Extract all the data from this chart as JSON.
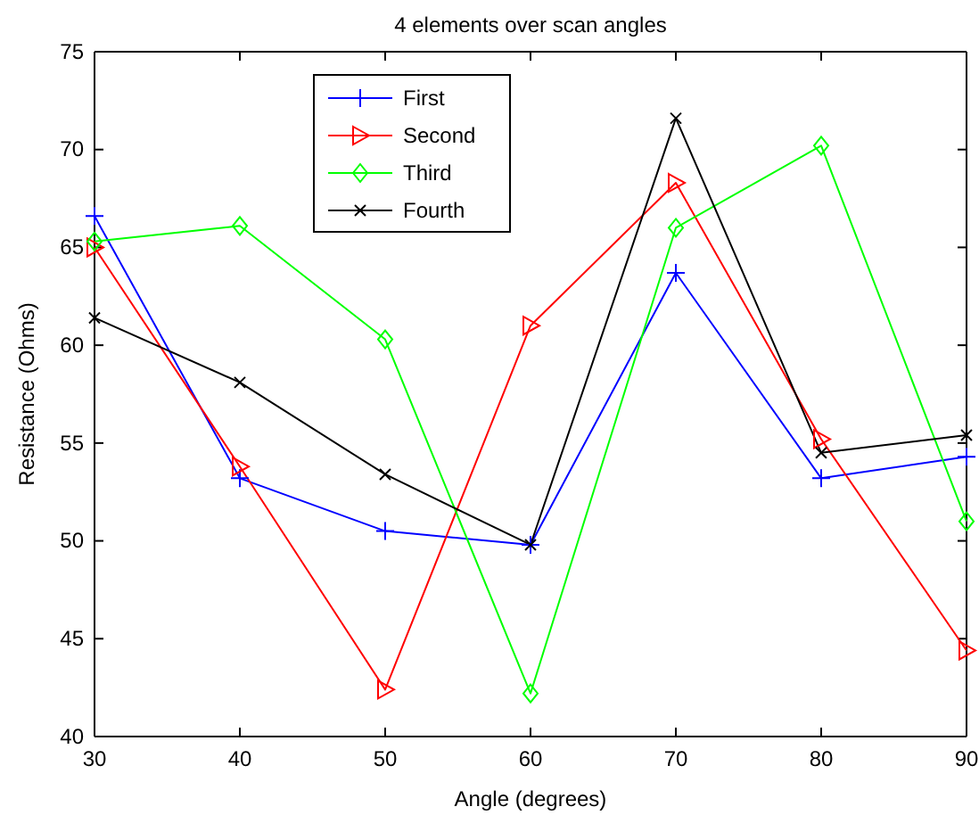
{
  "chart_data": {
    "type": "line",
    "title": "4 elements over scan angles",
    "xlabel": "Angle (degrees)",
    "ylabel": "Resistance (Ohms)",
    "x": [
      30,
      40,
      50,
      60,
      70,
      80,
      90
    ],
    "xlim": [
      30,
      90
    ],
    "xticks": [
      30,
      40,
      50,
      60,
      70,
      80,
      90
    ],
    "ylim": [
      40,
      75
    ],
    "yticks": [
      40,
      45,
      50,
      55,
      60,
      65,
      70,
      75
    ],
    "legend": "top left",
    "grid": false,
    "line_style": "solid",
    "series": [
      {
        "name": "First",
        "color": "#0000ff",
        "marker": "plus",
        "values": [
          66.6,
          53.2,
          50.5,
          49.8,
          63.7,
          53.2,
          54.3
        ]
      },
      {
        "name": "Second",
        "color": "#ff0000",
        "marker": "triangle",
        "values": [
          65.0,
          53.8,
          42.4,
          61.0,
          68.3,
          55.2,
          44.4
        ]
      },
      {
        "name": "Third",
        "color": "#00ff00",
        "marker": "diamond",
        "values": [
          65.3,
          66.1,
          60.3,
          42.2,
          66.0,
          70.2,
          51.0
        ]
      },
      {
        "name": "Fourth",
        "color": "#000000",
        "marker": "cross",
        "values": [
          61.4,
          58.1,
          53.4,
          49.8,
          71.6,
          54.5,
          55.4
        ]
      }
    ]
  }
}
